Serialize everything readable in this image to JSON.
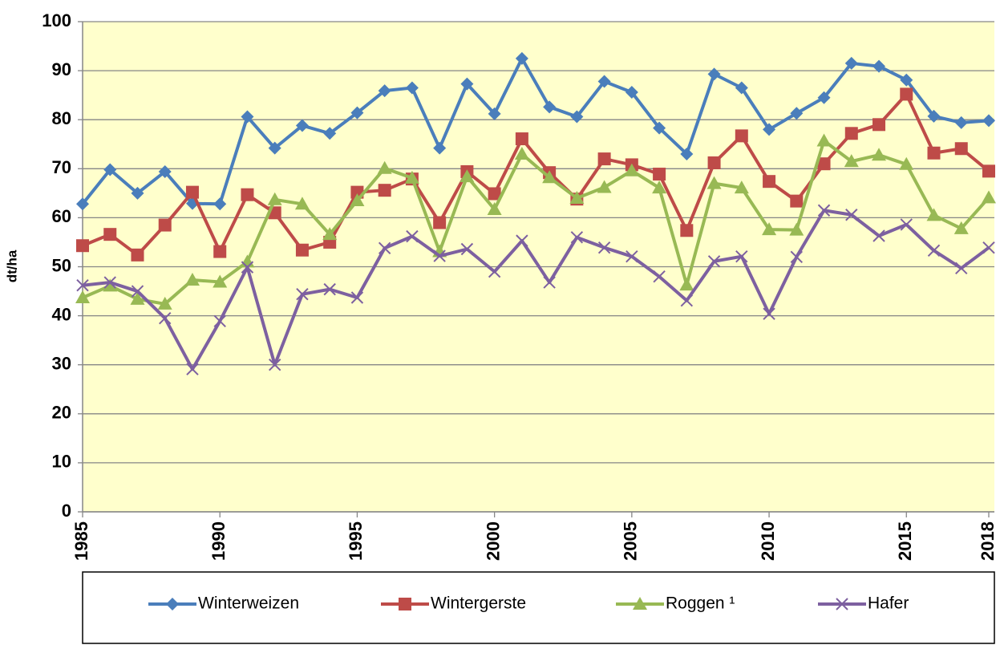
{
  "chart_data": {
    "type": "line",
    "y_label": "dt/ha",
    "x": [
      1985,
      1986,
      1987,
      1988,
      1989,
      1990,
      1991,
      1992,
      1993,
      1994,
      1995,
      1996,
      1997,
      1998,
      1999,
      2000,
      2001,
      2002,
      2003,
      2004,
      2005,
      2006,
      2007,
      2008,
      2009,
      2010,
      2011,
      2012,
      2013,
      2014,
      2015,
      2016,
      2017,
      2018
    ],
    "xlim": [
      1985,
      2018
    ],
    "xticks": [
      1985,
      1990,
      1995,
      2000,
      2005,
      2010,
      2015,
      2018
    ],
    "ylim": [
      0,
      100
    ],
    "yticks": [
      0,
      10,
      20,
      30,
      40,
      50,
      60,
      70,
      80,
      90,
      100
    ],
    "grid": true,
    "legend": "bottom",
    "series": [
      {
        "name": "Winterweizen",
        "color": "#4a7ebb",
        "marker": "diamond",
        "values": [
          62.8,
          69.8,
          65.0,
          69.4,
          62.9,
          62.8,
          80.6,
          74.2,
          78.8,
          77.2,
          81.4,
          85.9,
          86.5,
          74.2,
          87.3,
          81.2,
          92.5,
          82.6,
          80.6,
          87.8,
          85.6,
          78.3,
          73.0,
          89.3,
          86.5,
          78.0,
          81.3,
          84.5,
          91.5,
          90.9,
          88.1,
          80.7,
          79.4,
          79.8
        ]
      },
      {
        "name": "Wintergerste",
        "color": "#be4b48",
        "marker": "square",
        "values": [
          54.3,
          56.6,
          52.4,
          58.5,
          65.2,
          53.1,
          64.7,
          61.0,
          53.4,
          55.0,
          65.2,
          65.6,
          67.9,
          59.0,
          69.4,
          64.9,
          76.1,
          69.2,
          63.8,
          72.0,
          70.8,
          68.9,
          57.4,
          71.2,
          76.7,
          67.4,
          63.4,
          71.0,
          77.2,
          79.0,
          85.2,
          73.2,
          74.1,
          69.5
        ]
      },
      {
        "name": "Roggen ¹",
        "color": "#98b954",
        "marker": "triangle",
        "values": [
          43.7,
          46.1,
          43.4,
          42.4,
          47.3,
          46.9,
          51.0,
          63.7,
          62.8,
          56.6,
          63.5,
          70.1,
          68.1,
          53.1,
          68.4,
          61.7,
          73.0,
          68.2,
          64.0,
          66.2,
          69.6,
          66.1,
          46.3,
          67.0,
          66.1,
          57.6,
          57.5,
          75.7,
          71.5,
          72.8,
          70.9,
          60.5,
          57.8,
          64.1
        ]
      },
      {
        "name": "Hafer",
        "color": "#7d60a0",
        "marker": "x",
        "values": [
          46.2,
          46.8,
          45.0,
          39.5,
          29.1,
          38.9,
          49.9,
          30.0,
          44.4,
          45.4,
          43.7,
          53.8,
          56.2,
          52.2,
          53.6,
          49.0,
          55.3,
          46.8,
          56.0,
          53.9,
          52.1,
          48.0,
          43.1,
          51.1,
          52.1,
          40.4,
          52.0,
          61.5,
          60.6,
          56.3,
          58.6,
          53.3,
          49.7,
          53.9
        ]
      }
    ]
  }
}
